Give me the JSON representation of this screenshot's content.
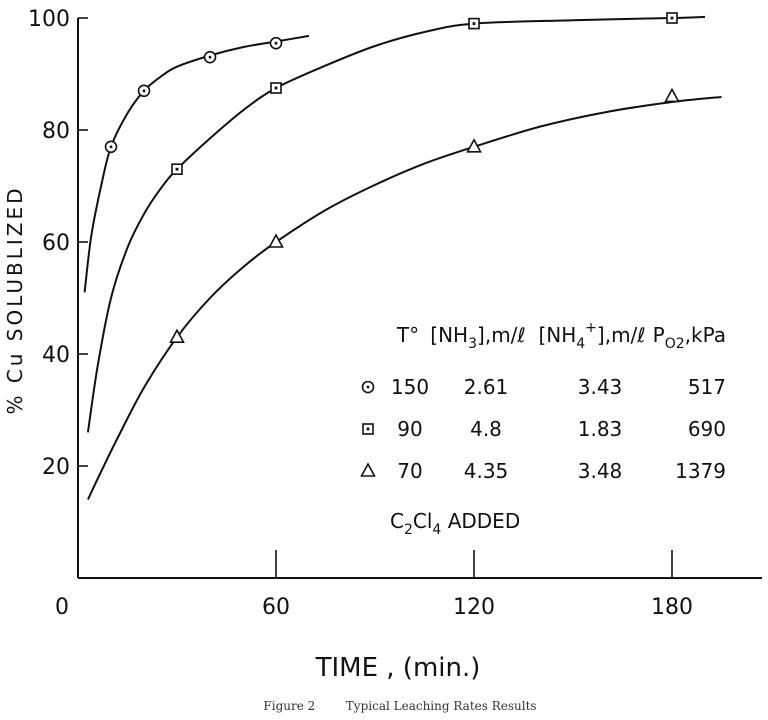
{
  "chart_data": {
    "type": "line",
    "title": "",
    "xlabel": "TIME , (min.)",
    "ylabel": "% Cu SOLUBLIZED",
    "xlim": [
      0,
      200
    ],
    "ylim": [
      0,
      100
    ],
    "x_ticks": [
      "0",
      "60",
      "120",
      "180"
    ],
    "y_ticks": [
      "20",
      "40",
      "60",
      "80",
      "100"
    ],
    "grid": false,
    "series": [
      {
        "marker": "circle",
        "x": [
          10,
          20,
          40,
          60
        ],
        "y": [
          77,
          87,
          93,
          95.5
        ],
        "curve_x": [
          2,
          4,
          7,
          10,
          15,
          20,
          25,
          30,
          40,
          50,
          60,
          70
        ],
        "curve_y": [
          51,
          61,
          70,
          77,
          83,
          87,
          89.5,
          91.3,
          93.3,
          94.8,
          95.8,
          96.8
        ]
      },
      {
        "marker": "square",
        "x": [
          30,
          60,
          120,
          180
        ],
        "y": [
          73,
          87.5,
          99,
          100
        ],
        "curve_x": [
          3,
          6,
          10,
          15,
          20,
          25,
          30,
          40,
          50,
          60,
          75,
          90,
          105,
          120,
          150,
          180,
          190
        ],
        "curve_y": [
          26,
          38,
          50,
          59,
          65,
          69.5,
          73,
          78.5,
          83.5,
          87.5,
          91.5,
          95,
          97.5,
          99,
          99.6,
          100,
          100.2
        ]
      },
      {
        "marker": "triangle",
        "x": [
          30,
          60,
          120,
          180
        ],
        "y": [
          43,
          60,
          77,
          86
        ],
        "curve_x": [
          3,
          7,
          12,
          20,
          30,
          40,
          50,
          60,
          75,
          90,
          105,
          120,
          140,
          160,
          180,
          195
        ],
        "curve_y": [
          14,
          19,
          25,
          34,
          43,
          50,
          55.5,
          60,
          65.7,
          70.2,
          74,
          77,
          80.6,
          83.2,
          85,
          85.9
        ]
      }
    ],
    "legend": {
      "placement": "lower-right",
      "header": [
        "T°",
        "[NH3],m/ℓ",
        "[NH4+],m/ℓ",
        "PO2,kPa"
      ],
      "rows": [
        [
          "150",
          "2.61",
          "3.43",
          "517"
        ],
        [
          "90",
          "4.8",
          "1.83",
          "690"
        ],
        [
          "70",
          "4.35",
          "3.48",
          "1379"
        ]
      ],
      "note": "C2Cl4 ADDED"
    },
    "caption": "Figure 2        Typical Leaching Rates Results"
  }
}
